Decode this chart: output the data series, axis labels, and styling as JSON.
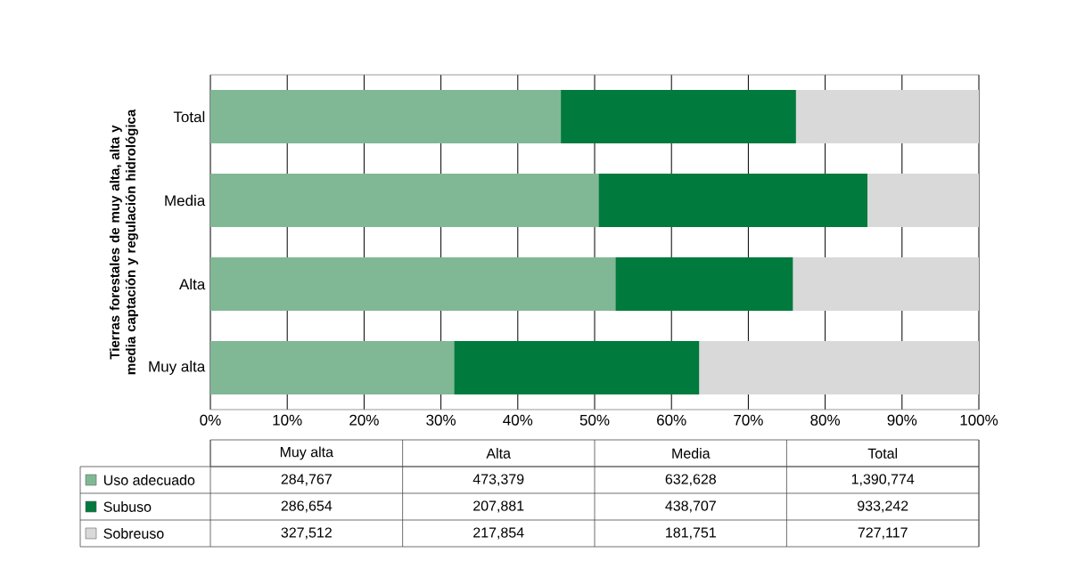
{
  "chart_data": [
    {
      "type": "bar",
      "orientation": "horizontal",
      "stacked": true,
      "ylabel": "Tierras forestales de muy alta, alta y media captación y regulación hidrológica",
      "categories": [
        "Total",
        "Media",
        "Alta",
        "Muy alta"
      ],
      "series": [
        {
          "color": "#80b896",
          "values": [
            45.6,
            50.5,
            52.7,
            31.7
          ]
        },
        {
          "color": "#007a3d",
          "values": [
            30.6,
            35.0,
            23.1,
            31.9
          ]
        },
        {
          "color": "#d9d9d9",
          "values": [
            23.8,
            14.5,
            24.2,
            36.4
          ]
        }
      ],
      "xlim": [
        0,
        100
      ],
      "xticks": [
        {
          "value": 0,
          "label": "0%"
        },
        {
          "value": 10,
          "label": "10%"
        },
        {
          "value": 20,
          "label": "20%"
        },
        {
          "value": 30,
          "label": "30%"
        },
        {
          "value": 40,
          "label": "40%"
        },
        {
          "value": 50,
          "label": "50%"
        },
        {
          "value": 60,
          "label": "60%"
        },
        {
          "value": 70,
          "label": "70%"
        },
        {
          "value": 80,
          "label": "80%"
        },
        {
          "value": 90,
          "label": "90%"
        },
        {
          "value": 100,
          "label": "100%"
        }
      ],
      "grid": "x"
    },
    {
      "type": "other",
      "data_labels": true,
      "categories": [
        "Muy alta",
        "Alta",
        "Media",
        "Total"
      ],
      "series": [
        {
          "name": "Uso adecuado",
          "color": "#80b896",
          "values": [
            284767,
            473379,
            632628,
            1390774
          ],
          "value_labels": [
            "284,767",
            "473,379",
            "632,628",
            "1,390,774"
          ]
        },
        {
          "name": "Subuso",
          "color": "#007a3d",
          "values": [
            286654,
            207881,
            438707,
            933242
          ],
          "value_labels": [
            "286,654",
            "207,881",
            "438,707",
            "933,242"
          ]
        },
        {
          "name": "Sobreuso",
          "color": "#d9d9d9",
          "values": [
            327512,
            217854,
            181751,
            727117
          ],
          "value_labels": [
            "327,512",
            "217,854",
            "181,751",
            "727,117"
          ]
        }
      ]
    }
  ]
}
